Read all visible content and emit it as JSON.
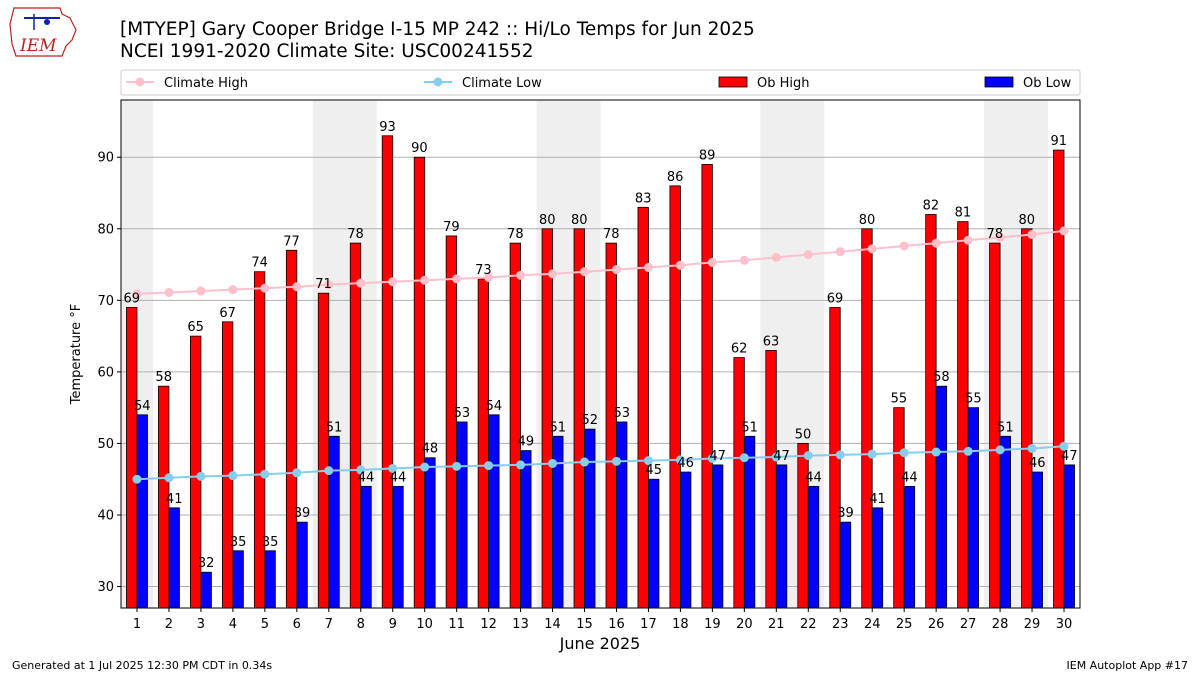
{
  "header": {
    "title_line1": "[MTYEP] Gary Cooper Bridge I-15 MP 242  :: Hi/Lo Temps for Jun 2025",
    "title_line2": "NCEI 1991-2020 Climate Site: USC00241552",
    "logo_text": "IEM"
  },
  "footer": {
    "left": "Generated at 1 Jul 2025 12:30 PM CDT in 0.34s",
    "right": "IEM Autoplot App #17"
  },
  "colors": {
    "ob_high": "#ff0000",
    "ob_low": "#0000ff",
    "climate_high": "#ffc0cb",
    "climate_low": "#87ceeb",
    "weekend_shade": "#efefef",
    "grid": "#b0b0b0"
  },
  "chart_data": {
    "type": "bar",
    "xlabel": "June 2025",
    "ylabel": "Temperature °F",
    "ylim": [
      27,
      98
    ],
    "yticks": [
      30,
      40,
      50,
      60,
      70,
      80,
      90
    ],
    "grid": "horizontal",
    "legend_placement": "top, above plot",
    "categories": [
      "1",
      "2",
      "3",
      "4",
      "5",
      "6",
      "7",
      "8",
      "9",
      "10",
      "11",
      "12",
      "13",
      "14",
      "15",
      "16",
      "17",
      "18",
      "19",
      "20",
      "21",
      "22",
      "23",
      "24",
      "25",
      "26",
      "27",
      "28",
      "29",
      "30"
    ],
    "shaded_days": [
      "1",
      "7",
      "8",
      "14",
      "15",
      "21",
      "22",
      "28",
      "29"
    ],
    "series": [
      {
        "name": "Ob High",
        "kind": "bar",
        "values": [
          69,
          58,
          65,
          67,
          74,
          77,
          71,
          78,
          93,
          90,
          79,
          73,
          78,
          80,
          80,
          78,
          83,
          86,
          89,
          62,
          63,
          50,
          69,
          80,
          55,
          82,
          81,
          78,
          80,
          91
        ]
      },
      {
        "name": "Ob Low",
        "kind": "bar",
        "values": [
          54,
          41,
          32,
          35,
          35,
          39,
          51,
          44,
          44,
          48,
          53,
          54,
          49,
          51,
          52,
          53,
          45,
          46,
          47,
          51,
          47,
          44,
          39,
          41,
          44,
          58,
          55,
          51,
          46,
          47
        ]
      },
      {
        "name": "Climate High",
        "kind": "line",
        "values": [
          70.9,
          71.1,
          71.3,
          71.5,
          71.7,
          71.9,
          72.2,
          72.4,
          72.6,
          72.8,
          73.0,
          73.2,
          73.5,
          73.7,
          74.0,
          74.3,
          74.6,
          74.9,
          75.3,
          75.6,
          76.0,
          76.4,
          76.8,
          77.2,
          77.6,
          78.0,
          78.4,
          78.8,
          79.2,
          79.7
        ]
      },
      {
        "name": "Climate Low",
        "kind": "line",
        "values": [
          45.0,
          45.2,
          45.4,
          45.5,
          45.7,
          45.9,
          46.2,
          46.3,
          46.5,
          46.7,
          46.8,
          46.9,
          47.0,
          47.2,
          47.4,
          47.5,
          47.6,
          47.7,
          47.9,
          48.0,
          48.1,
          48.3,
          48.4,
          48.5,
          48.7,
          48.8,
          48.9,
          49.1,
          49.3,
          49.6
        ]
      }
    ],
    "legend": [
      "Climate High",
      "Climate Low",
      "Ob High",
      "Ob Low"
    ]
  }
}
